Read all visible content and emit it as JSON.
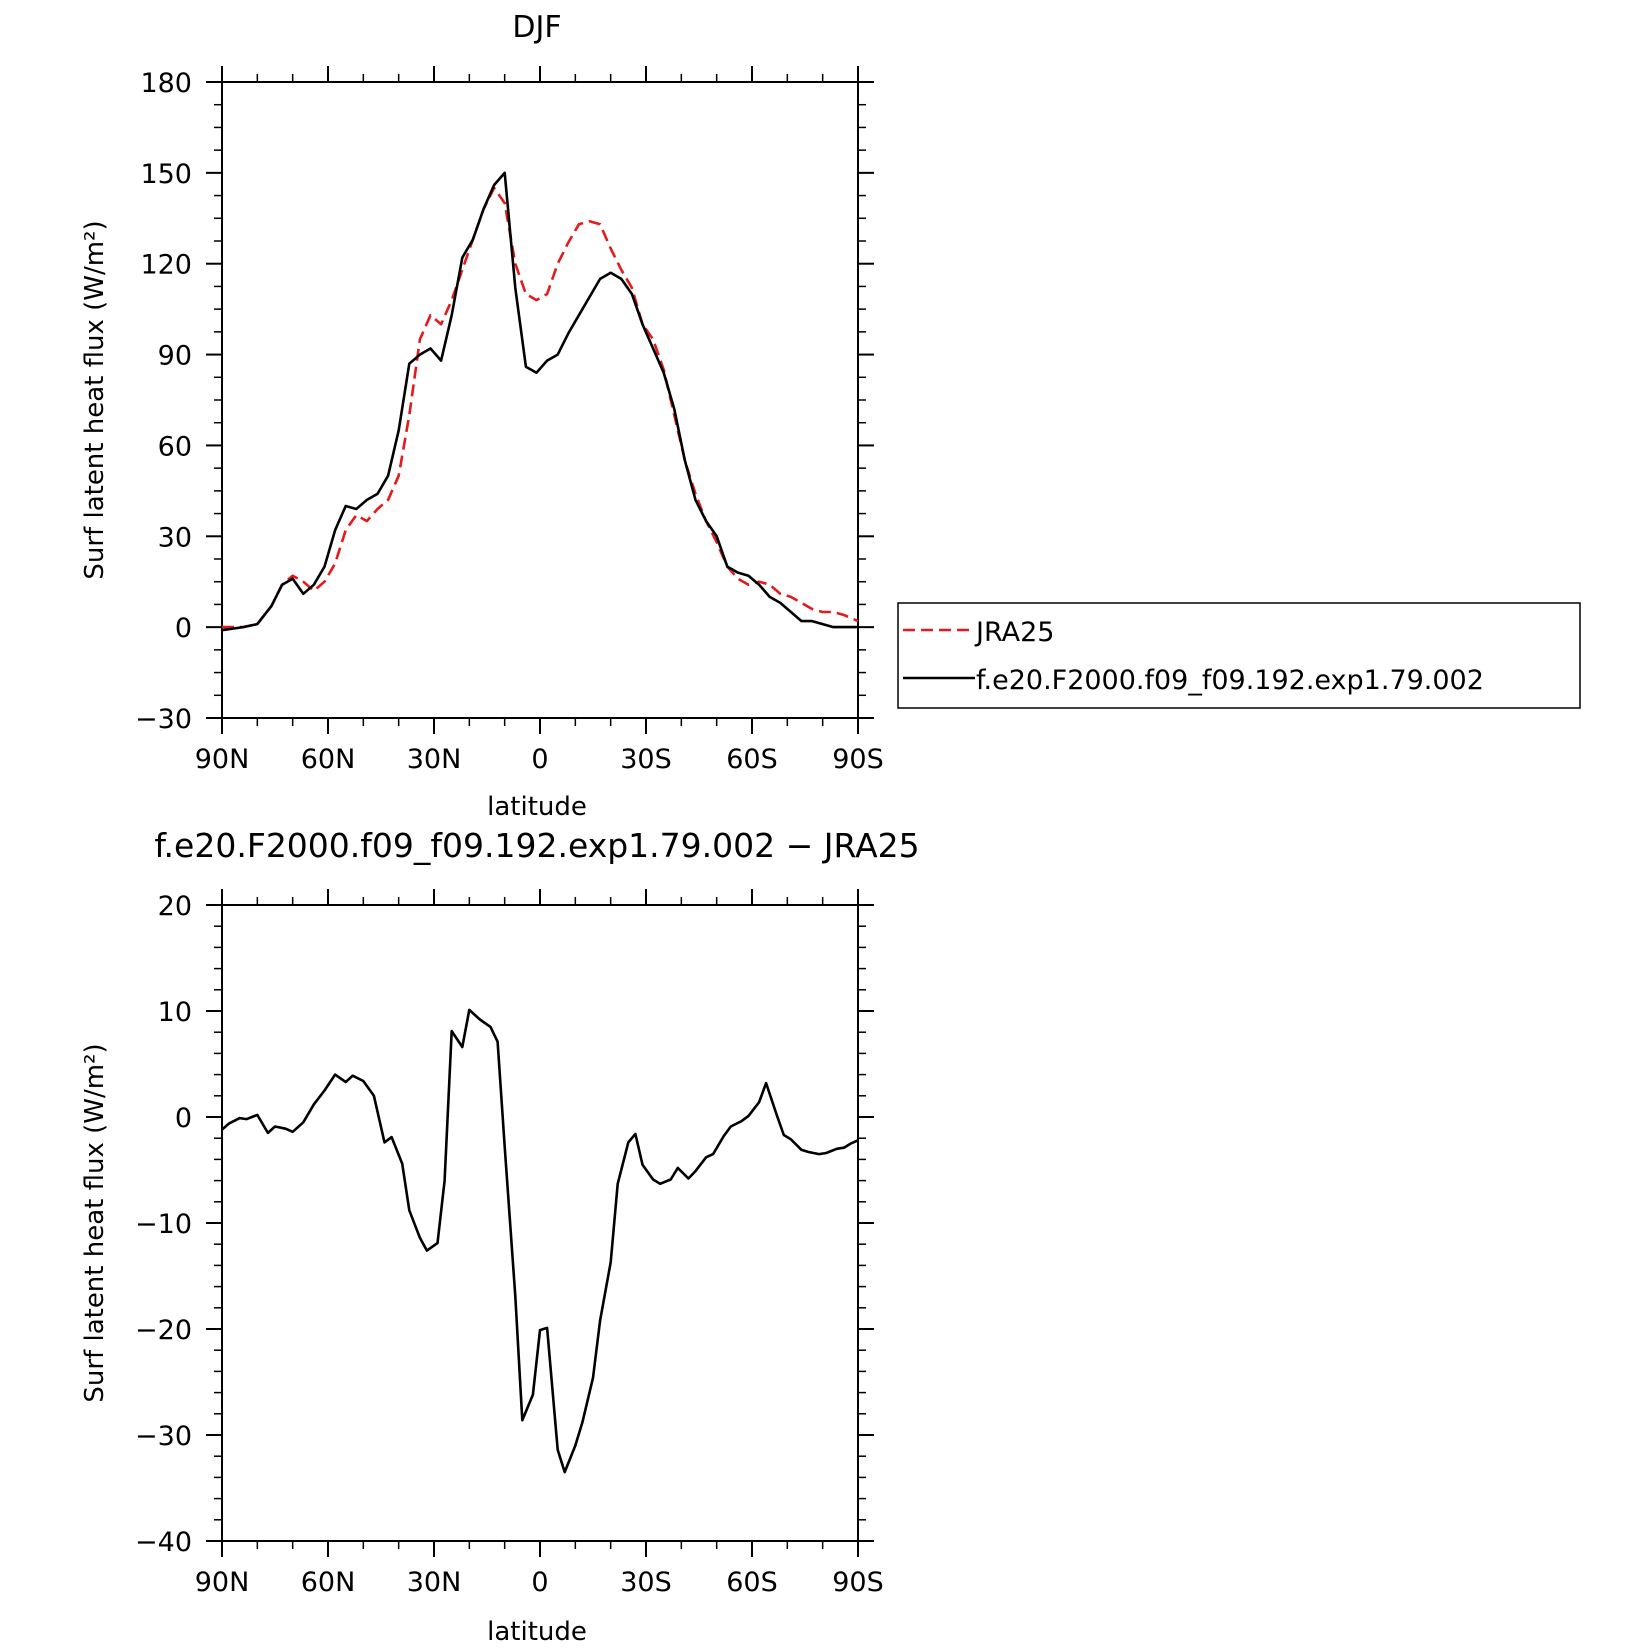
{
  "chart_data": [
    {
      "type": "line",
      "title": "DJF",
      "xlabel": "latitude",
      "ylabel": "Surf latent heat flux (W/m²)",
      "xlim": [
        90,
        -90
      ],
      "ylim": [
        -30,
        180
      ],
      "x_ticks": [
        90,
        60,
        30,
        0,
        -30,
        -60,
        -90
      ],
      "x_tick_labels": [
        "90N",
        "60N",
        "30N",
        "0",
        "30S",
        "60S",
        "90S"
      ],
      "y_ticks": [
        -30,
        0,
        30,
        60,
        90,
        120,
        150,
        180
      ],
      "y_tick_labels": [
        "−30",
        "0",
        "30",
        "60",
        "90",
        "120",
        "150",
        "180"
      ],
      "grid": false,
      "legend_position": "right",
      "series": [
        {
          "name": "JRA25",
          "color": "#e41a1c",
          "dash": "dashed",
          "x": [
            90,
            84,
            80,
            76,
            73,
            70,
            67,
            64,
            61,
            58,
            55,
            52,
            49,
            46,
            43,
            40,
            37,
            34,
            31,
            28,
            25,
            22,
            19,
            16,
            13,
            10,
            7,
            4,
            1,
            -2,
            -5,
            -8,
            -11,
            -14,
            -17,
            -20,
            -23,
            -26,
            -29,
            -32,
            -35,
            -38,
            -41,
            -44,
            -47,
            -50,
            -53,
            -56,
            -59,
            -62,
            -65,
            -68,
            -71,
            -74,
            -77,
            -80,
            -83,
            -86,
            -90
          ],
          "values": [
            0,
            0,
            1,
            7,
            14,
            17,
            15,
            12,
            15,
            21,
            32,
            37,
            35,
            39,
            42,
            50,
            70,
            95,
            103,
            100,
            108,
            118,
            128,
            138,
            145,
            140,
            120,
            110,
            108,
            110,
            120,
            127,
            133,
            134,
            133,
            125,
            118,
            112,
            100,
            95,
            85,
            70,
            55,
            44,
            35,
            28,
            20,
            16,
            14,
            15,
            14,
            11,
            10,
            8,
            6,
            5,
            5,
            4,
            2
          ]
        },
        {
          "name": "f.e20.F2000.f09_f09.192.exp1.79.002",
          "color": "#000000",
          "dash": "solid",
          "x": [
            90,
            84,
            80,
            76,
            73,
            70,
            67,
            64,
            61,
            58,
            55,
            52,
            49,
            46,
            43,
            40,
            37,
            34,
            31,
            28,
            25,
            22,
            19,
            16,
            13,
            10,
            7,
            4,
            1,
            -2,
            -5,
            -8,
            -11,
            -14,
            -17,
            -20,
            -23,
            -26,
            -29,
            -32,
            -35,
            -38,
            -41,
            -44,
            -47,
            -50,
            -53,
            -56,
            -59,
            -62,
            -65,
            -68,
            -71,
            -74,
            -77,
            -80,
            -83,
            -86,
            -90
          ],
          "values": [
            -1,
            0,
            1,
            7,
            14,
            16,
            11,
            14,
            20,
            32,
            40,
            39,
            42,
            44,
            50,
            65,
            87,
            90,
            92,
            88,
            103,
            122,
            128,
            138,
            146,
            150,
            112,
            86,
            84,
            88,
            90,
            97,
            103,
            109,
            115,
            117,
            115,
            110,
            100,
            92,
            84,
            72,
            55,
            42,
            35,
            30,
            20,
            18,
            17,
            14,
            10,
            8,
            5,
            2,
            2,
            1,
            0,
            0,
            0
          ]
        }
      ]
    },
    {
      "type": "line",
      "title": "f.e20.F2000.f09_f09.192.exp1.79.002 − JRA25",
      "xlabel": "latitude",
      "ylabel": "Surf latent heat flux (W/m²)",
      "xlim": [
        90,
        -90
      ],
      "ylim": [
        -40,
        20
      ],
      "x_ticks": [
        90,
        60,
        30,
        0,
        -30,
        -60,
        -90
      ],
      "x_tick_labels": [
        "90N",
        "60N",
        "30N",
        "0",
        "30S",
        "60S",
        "90S"
      ],
      "y_ticks": [
        -40,
        -30,
        -20,
        -10,
        0,
        10,
        20
      ],
      "y_tick_labels": [
        "−40",
        "−30",
        "−20",
        "−10",
        "0",
        "10",
        "20"
      ],
      "grid": false,
      "series": [
        {
          "color": "#000000",
          "dash": "solid",
          "x": [
            90,
            88,
            85,
            83,
            80,
            77,
            75,
            72,
            70,
            67,
            64,
            61,
            58,
            55,
            53,
            50,
            47,
            44,
            42,
            39,
            37,
            34,
            32,
            29,
            27,
            25,
            22,
            20,
            17,
            14,
            12,
            10,
            7,
            5,
            2,
            0,
            -2,
            -5,
            -7,
            -10,
            -12,
            -15,
            -17,
            -20,
            -22,
            -25,
            -27,
            -29,
            -32,
            -34,
            -37,
            -39,
            -42,
            -44,
            -47,
            -49,
            -52,
            -54,
            -57,
            -59,
            -62,
            -64,
            -67,
            -69,
            -71,
            -74,
            -76,
            -79,
            -81,
            -84,
            -86,
            -88,
            -90
          ],
          "values": [
            -1.2,
            -0.6,
            -0.1,
            -0.2,
            0.2,
            -1.5,
            -0.9,
            -1.1,
            -1.4,
            -0.5,
            1.2,
            2.5,
            4.0,
            3.3,
            3.9,
            3.4,
            2.0,
            -2.4,
            -1.9,
            -4.4,
            -8.8,
            -11.4,
            -12.6,
            -11.9,
            -6.0,
            8.1,
            6.6,
            10.1,
            9.2,
            8.5,
            7.1,
            -2.8,
            -16.9,
            -28.6,
            -26.2,
            -20.1,
            -19.9,
            -31.4,
            -33.5,
            -31.0,
            -28.8,
            -24.6,
            -19.2,
            -13.7,
            -6.3,
            -2.4,
            -1.6,
            -4.5,
            -5.9,
            -6.3,
            -5.9,
            -4.8,
            -5.8,
            -5.1,
            -3.8,
            -3.5,
            -1.8,
            -0.9,
            -0.4,
            0.1,
            1.4,
            3.2,
            0.2,
            -1.7,
            -2.1,
            -3.1,
            -3.3,
            -3.5,
            -3.4,
            -3.0,
            -2.9,
            -2.5,
            -2.2
          ]
        }
      ]
    }
  ]
}
